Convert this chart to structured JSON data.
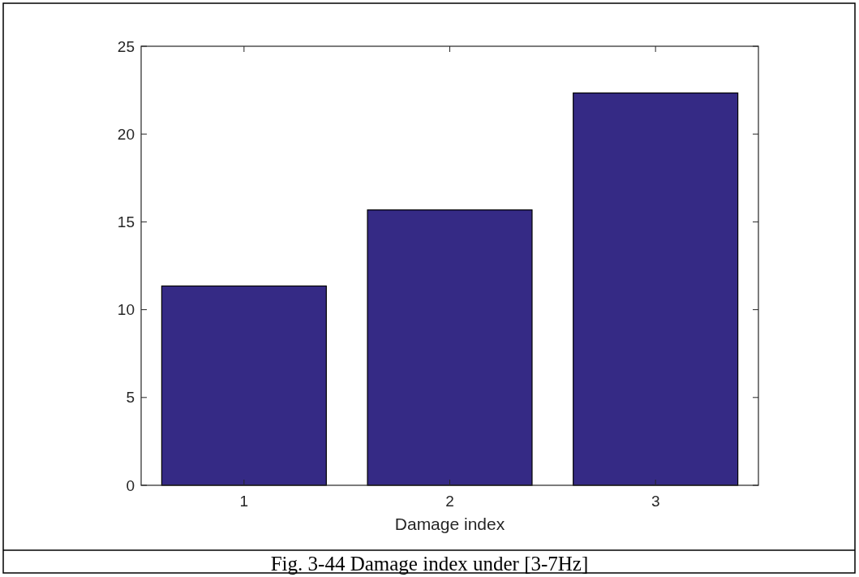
{
  "chart_data": {
    "type": "bar",
    "xlabel": "Damage index",
    "annotations": [
      "Fig. 3-44 Damage index under [3-7Hz]"
    ],
    "categories": [
      "1",
      "2",
      "3"
    ],
    "values": [
      11.35,
      15.68,
      22.34
    ],
    "color": "#352a85",
    "ylim": [
      0,
      25
    ],
    "yticks": [
      0,
      5,
      10,
      15,
      20,
      25
    ],
    "grid": false
  }
}
